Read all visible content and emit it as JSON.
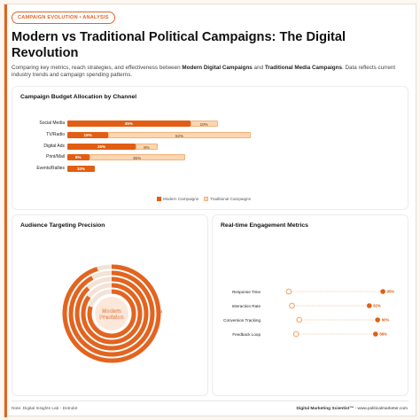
{
  "badge": "CAMPAIGN EVOLUTION • ANALYSIS",
  "title": "Modern vs Traditional Political Campaigns: The Digital Revolution",
  "subtitle": {
    "pre": "Comparing key metrics, reach strategies, and effectiveness between ",
    "modern": "Modern Digital Campaigns",
    "mid": " and ",
    "traditional": "Traditional Media Campaigns",
    "post": ". Data reflects current industry trends and campaign spending patterns."
  },
  "colors": {
    "accent": "#e3641f",
    "modern": "#e15e13",
    "traditional": "#fbd6b0"
  },
  "footer": {
    "left": "Note: Digital Insights Lab - Dotndot",
    "right_brand": "Digital Marketing Scientist™",
    "right_rest": " - www.politicalmarketer.com"
  },
  "chart_data": [
    {
      "type": "bar",
      "orientation": "horizontal",
      "stacked": true,
      "title": "Campaign Budget Allocation by Channel",
      "categories": [
        "Social Media",
        "TV/Radio",
        "Digital Ads",
        "Print/Mail",
        "Events/Rallies"
      ],
      "series": [
        {
          "name": "Modern Campaigns",
          "values": [
            45,
            15,
            25,
            8,
            10
          ]
        },
        {
          "name": "Traditional Campaigns",
          "values": [
            10,
            52,
            8,
            35,
            0
          ]
        }
      ],
      "legend": "bottom",
      "xlim": [
        0,
        120
      ]
    },
    {
      "type": "radial-bar",
      "title": "Audience Targeting Precision",
      "center_label": "Modern Precision",
      "rings": [
        95,
        92,
        88,
        85,
        80
      ],
      "annotation": "3"
    },
    {
      "type": "dot-range",
      "title": "Real-time Engagement Metrics",
      "categories": [
        "Response Time",
        "Interaction Rate",
        "Conversion Tracking",
        "Feedback Loop"
      ],
      "traditional": [
        5,
        8,
        15,
        12
      ],
      "modern": [
        95,
        82,
        90,
        88
      ],
      "value_labels": [
        "95%",
        "82%",
        "90%",
        "88%"
      ],
      "xlim": [
        0,
        100
      ]
    }
  ]
}
